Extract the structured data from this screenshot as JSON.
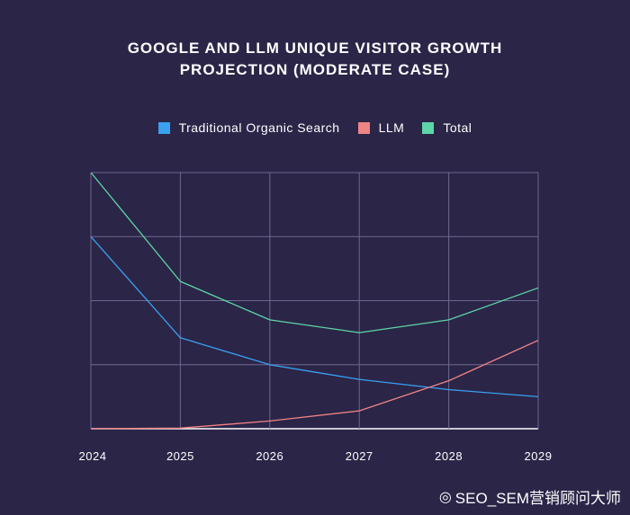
{
  "chart_data": {
    "type": "line",
    "title": "GOOGLE AND LLM UNIQUE VISITOR GROWTH PROJECTION (MODERATE CASE)",
    "title_lines": [
      "GOOGLE AND LLM UNIQUE VISITOR GROWTH",
      "PROJECTION (MODERATE CASE)"
    ],
    "x": [
      "2024",
      "2025",
      "2026",
      "2027",
      "2028",
      "2029"
    ],
    "series": [
      {
        "name": "Traditional Organic Search",
        "color": "#3aa0f0",
        "values": [
          3.0,
          1.42,
          1.0,
          0.77,
          0.61,
          0.5
        ]
      },
      {
        "name": "LLM",
        "color": "#f08484",
        "values": [
          0.0,
          0.01,
          0.12,
          0.28,
          0.75,
          1.38
        ]
      },
      {
        "name": "Total",
        "color": "#5cd6a6",
        "values": [
          4.0,
          2.3,
          1.7,
          1.5,
          1.7,
          2.2
        ]
      }
    ],
    "ylim": [
      0,
      4.0
    ],
    "yticks": [
      0,
      1,
      2,
      3,
      4
    ],
    "show_ytick_labels": false,
    "grid": true,
    "legend_position": "top-center",
    "xlabel": "",
    "ylabel": ""
  },
  "watermark": {
    "icon": "weibo-icon",
    "text": "SEO_SEM营销顾问大师"
  }
}
